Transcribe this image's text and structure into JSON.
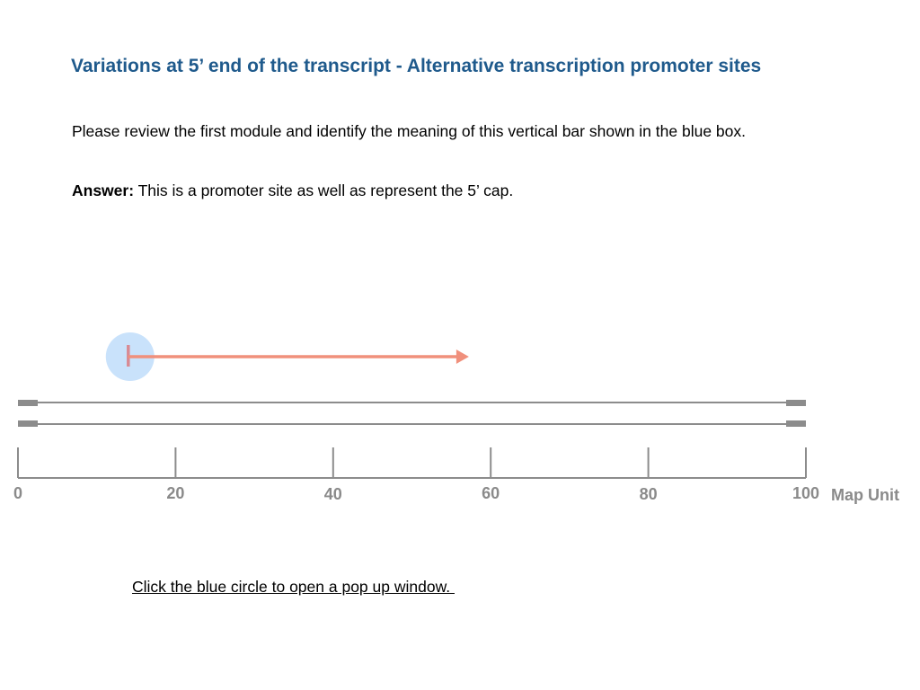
{
  "title": "Variations at 5’ end of the transcript - Alternative transcription promoter sites",
  "question": "Please review the first module and identify the meaning of this vertical bar shown in the blue box.",
  "answer": {
    "label": "Answer:",
    "text": " This is a promoter site as well as represent the 5’ cap."
  },
  "map": {
    "ticks": [
      "0",
      "20",
      "40",
      "60",
      "80",
      "100"
    ],
    "unit_label": "Map Unit",
    "promoter_position": 14,
    "arrow_end": 57
  },
  "instruction": "Click the blue circle to open a pop up window. ",
  "colors": {
    "title": "#1f5a8c",
    "strand": "#8c8c8c",
    "arrow": "#f0907c",
    "promoter_bar": "#d88a94",
    "circle": "#c9e2fb"
  }
}
